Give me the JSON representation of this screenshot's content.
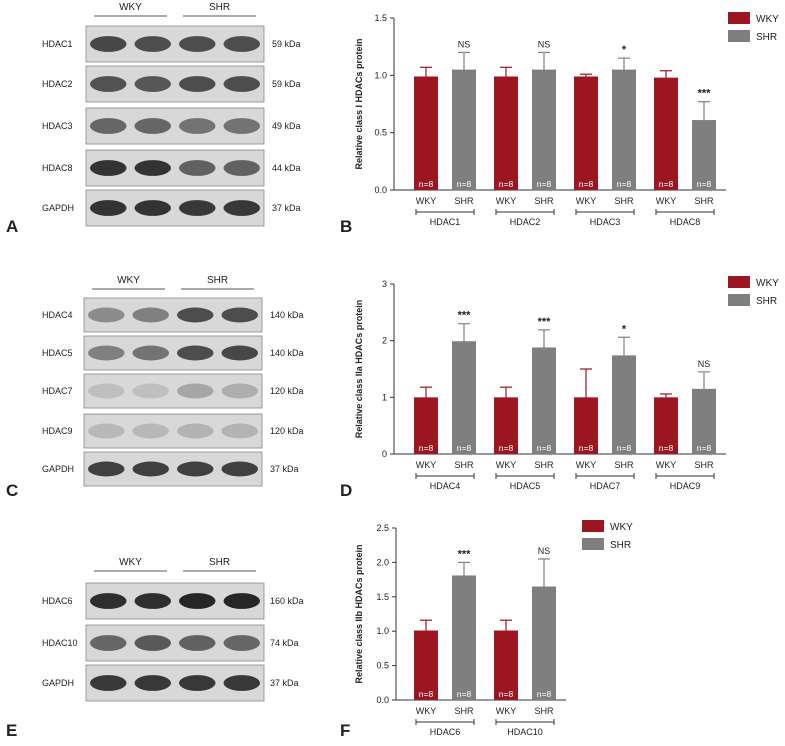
{
  "colors": {
    "wky": "#9b1620",
    "shr": "#7f7f7f",
    "axis": "#333333"
  },
  "panel_labels": [
    "A",
    "B",
    "C",
    "D",
    "E",
    "F"
  ],
  "blots": [
    {
      "group_labels": [
        "WKY",
        "SHR"
      ],
      "rows": [
        {
          "name": "HDAC1",
          "size": "59 kDa"
        },
        {
          "name": "HDAC2",
          "size": "59 kDa"
        },
        {
          "name": "HDAC3",
          "size": "49 kDa"
        },
        {
          "name": "HDAC8",
          "size": "44 kDa"
        },
        {
          "name": "GAPDH",
          "size": "37 kDa"
        }
      ]
    },
    {
      "group_labels": [
        "WKY",
        "SHR"
      ],
      "rows": [
        {
          "name": "HDAC4",
          "size": "140 kDa"
        },
        {
          "name": "HDAC5",
          "size": "140 kDa"
        },
        {
          "name": "HDAC7",
          "size": "120 kDa"
        },
        {
          "name": "HDAC9",
          "size": "120 kDa"
        },
        {
          "name": "GAPDH",
          "size": "37 kDa"
        }
      ]
    },
    {
      "group_labels": [
        "WKY",
        "SHR"
      ],
      "rows": [
        {
          "name": "HDAC6",
          "size": "160 kDa"
        },
        {
          "name": "HDAC10",
          "size": "74 kDa"
        },
        {
          "name": "GAPDH",
          "size": "37 kDa"
        }
      ]
    }
  ],
  "chart_data": [
    {
      "type": "bar",
      "ylabel": "Relative class I HDACs protein",
      "ylim": [
        0,
        1.5
      ],
      "yticks": [
        "0.0",
        "0.5",
        "1.0",
        "1.5"
      ],
      "groups": [
        "HDAC1",
        "HDAC2",
        "HDAC3",
        "HDAC8"
      ],
      "legend": [
        "WKY",
        "SHR"
      ],
      "legend_placement": "top-right",
      "n_label": "n=8",
      "series": [
        {
          "name": "WKY",
          "values": [
            0.99,
            0.99,
            0.99,
            0.98
          ],
          "errors": [
            0.08,
            0.08,
            0.02,
            0.06
          ]
        },
        {
          "name": "SHR",
          "values": [
            1.05,
            1.05,
            1.05,
            0.61
          ],
          "errors": [
            0.15,
            0.15,
            0.1,
            0.16
          ]
        }
      ],
      "significance": [
        "NS",
        "NS",
        "*",
        "***"
      ]
    },
    {
      "type": "bar",
      "ylabel": "Relative class IIa HDACs protein",
      "ylim": [
        0,
        3
      ],
      "yticks": [
        "0",
        "1",
        "2",
        "3"
      ],
      "groups": [
        "HDAC4",
        "HDAC5",
        "HDAC7",
        "HDAC9"
      ],
      "legend": [
        "WKY",
        "SHR"
      ],
      "legend_placement": "top-right",
      "n_label": "n=8",
      "series": [
        {
          "name": "WKY",
          "values": [
            1.0,
            1.0,
            1.0,
            1.0
          ],
          "errors": [
            0.18,
            0.18,
            0.5,
            0.06
          ]
        },
        {
          "name": "SHR",
          "values": [
            1.99,
            1.88,
            1.74,
            1.15
          ],
          "errors": [
            0.31,
            0.31,
            0.32,
            0.3
          ]
        }
      ],
      "significance": [
        "***",
        "***",
        "*",
        "NS"
      ]
    },
    {
      "type": "bar",
      "ylabel": "Relative class IIb HDACs protein",
      "ylim": [
        0,
        2.5
      ],
      "yticks": [
        "0.0",
        "0.5",
        "1.0",
        "1.5",
        "2.0",
        "2.5"
      ],
      "groups": [
        "HDAC6",
        "HDAC10"
      ],
      "legend": [
        "WKY",
        "SHR"
      ],
      "legend_placement": "top-left",
      "n_label": "n=8",
      "series": [
        {
          "name": "WKY",
          "values": [
            1.01,
            1.01
          ],
          "errors": [
            0.15,
            0.15
          ]
        },
        {
          "name": "SHR",
          "values": [
            1.81,
            1.65
          ],
          "errors": [
            0.19,
            0.4
          ]
        }
      ],
      "significance": [
        "***",
        "NS"
      ]
    }
  ]
}
